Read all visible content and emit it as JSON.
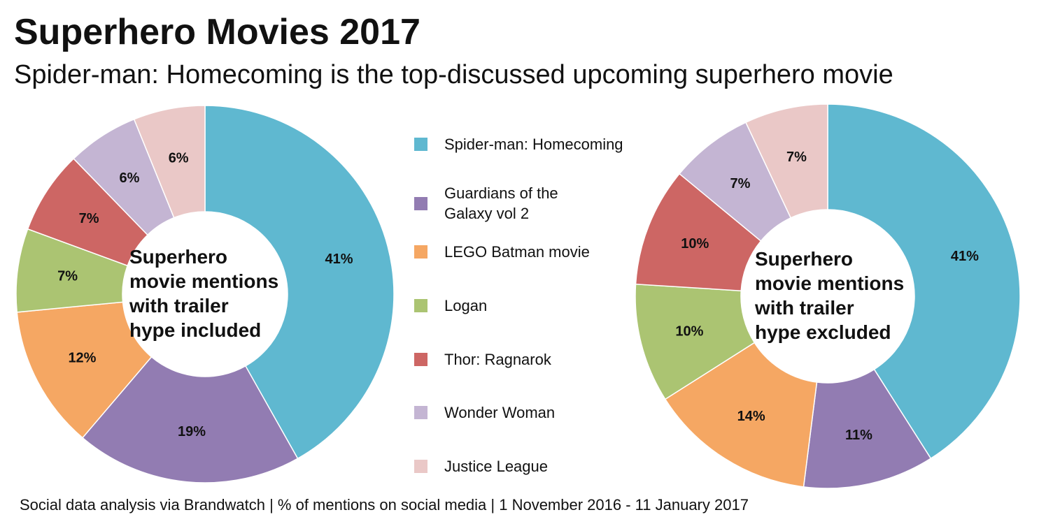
{
  "title": "Superhero Movies 2017",
  "subtitle": "Spider-man: Homecoming is the top-discussed upcoming superhero movie",
  "footer": "Social data analysis via Brandwatch | % of mentions on social media | 1 November 2016 - 11 January 2017",
  "colors": {
    "spider_man": "#5fb8d0",
    "guardians": "#927cb2",
    "lego_batman": "#f5a763",
    "logan": "#abc472",
    "thor": "#cd6664",
    "wonder_woman": "#c4b5d3",
    "justice_league": "#eac8c7"
  },
  "legend": [
    {
      "label": "Spider-man: Homecoming",
      "color": "#5fb8d0"
    },
    {
      "label": "Guardians of the\nGalaxy vol 2",
      "color": "#927cb2"
    },
    {
      "label": "LEGO Batman movie",
      "color": "#f5a763"
    },
    {
      "label": "Logan",
      "color": "#abc472"
    },
    {
      "label": "Thor: Ragnarok",
      "color": "#cd6664"
    },
    {
      "label": "Wonder Woman",
      "color": "#c4b5d3"
    },
    {
      "label": "Justice League",
      "color": "#eac8c7"
    }
  ],
  "chart_data": [
    {
      "type": "pie",
      "center_label": "Superhero\nmovie mentions\nwith trailer\nhype included",
      "categories": [
        "Spider-man: Homecoming",
        "Guardians of the Galaxy vol 2",
        "LEGO Batman movie",
        "Logan",
        "Thor: Ragnarok",
        "Wonder Woman",
        "Justice League"
      ],
      "values": [
        41,
        19,
        12,
        7,
        7,
        6,
        6
      ],
      "labels": [
        "41%",
        "19%",
        "12%",
        "7%",
        "7%",
        "6%",
        "6%"
      ],
      "colors": [
        "#5fb8d0",
        "#927cb2",
        "#f5a763",
        "#abc472",
        "#cd6664",
        "#c4b5d3",
        "#eac8c7"
      ]
    },
    {
      "type": "pie",
      "center_label": "Superhero\nmovie mentions\nwith trailer\nhype excluded",
      "categories": [
        "Spider-man: Homecoming",
        "Guardians of the Galaxy vol 2",
        "LEGO Batman movie",
        "Logan",
        "Thor: Ragnarok",
        "Wonder Woman",
        "Justice League"
      ],
      "values": [
        41,
        11,
        14,
        10,
        10,
        7,
        7
      ],
      "labels": [
        "41%",
        "11%",
        "14%",
        "10%",
        "10%",
        "7%",
        "7%"
      ],
      "colors": [
        "#5fb8d0",
        "#927cb2",
        "#f5a763",
        "#abc472",
        "#cd6664",
        "#c4b5d3",
        "#eac8c7"
      ]
    }
  ]
}
